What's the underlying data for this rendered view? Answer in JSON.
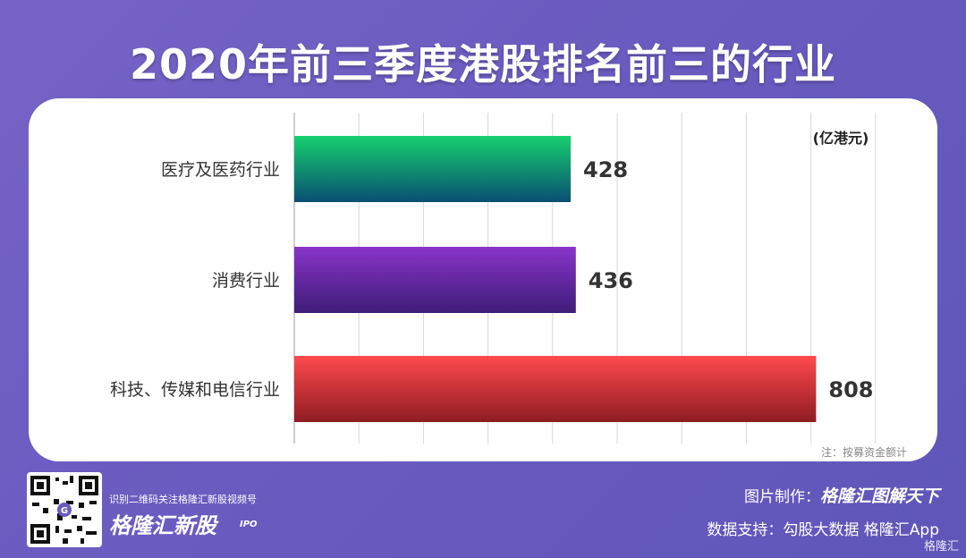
{
  "title": "2020年前三季度港股排名前三的行业",
  "chart_data": {
    "type": "bar",
    "orientation": "horizontal",
    "categories": [
      "医疗及医药行业",
      "消费行业",
      "科技、传媒和电信行业"
    ],
    "values": [
      428,
      436,
      808
    ],
    "value_labels": [
      "428",
      "436",
      "808"
    ],
    "unit_label": "(亿港元)",
    "note": "注：按募资金额计",
    "xlim": [
      0,
      900
    ],
    "grid": true,
    "colors": [
      "#12b87a",
      "#7a2fbd",
      "#f0383c"
    ]
  },
  "footer": {
    "qr_tagline": "识别二维码关注格隆汇新股视频号",
    "qr_brand": "格隆汇新股",
    "qr_brand_sub": "IPO",
    "credit_label": "图片制作：",
    "credit_name": "格隆汇图解天下",
    "data_support": "数据支持：勾股大数据  格隆汇App",
    "corner_watermark": "格隆汇"
  }
}
